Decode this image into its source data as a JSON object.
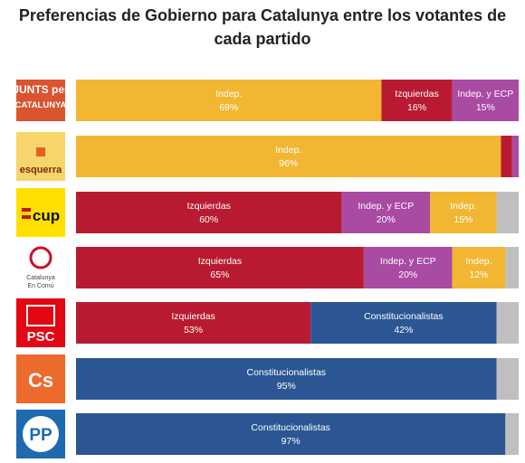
{
  "chart_data": {
    "type": "bar",
    "orientation": "horizontal",
    "stacked": true,
    "normalized": true,
    "title_lines": [
      "Preferencias de Gobierno para Catalunya entre los votantes de",
      "cada partido"
    ],
    "xlabel": "",
    "ylabel": "",
    "xlim": [
      0,
      100
    ],
    "grid": false,
    "legend": "none",
    "categories": [
      "Junts per Catalunya",
      "Esquerra",
      "CUP",
      "Catalunya En Comú",
      "PSC",
      "Cs",
      "PP"
    ],
    "logo_texts": [
      "JUNTS PER CATALUNYA",
      "esquerra",
      "cup",
      "Catalunya En Comú",
      "PSC",
      "Cs",
      "PP"
    ],
    "colors": {
      "Indep.": "#f2b632",
      "Izquierdas": "#b81b31",
      "Indep. y ECP": "#a94aa3",
      "Constitucionalistas": "#2b5693",
      "other": "#bfbfbf"
    },
    "rows": [
      {
        "segments": [
          {
            "label": "Indep.",
            "value": 69,
            "text": "69%"
          },
          {
            "label": "Izquierdas",
            "value": 16,
            "text": "16%"
          },
          {
            "label": "Indep. y ECP",
            "value": 15,
            "text": "15%"
          }
        ]
      },
      {
        "segments": [
          {
            "label": "Indep.",
            "value": 96,
            "text": "96%"
          },
          {
            "label": "",
            "series": "Izquierdas",
            "value": 2.5,
            "text": ""
          },
          {
            "label": "",
            "series": "Indep. y ECP",
            "value": 1.5,
            "text": ""
          }
        ]
      },
      {
        "segments": [
          {
            "label": "Izquierdas",
            "value": 60,
            "text": "60%"
          },
          {
            "label": "Indep. y ECP",
            "value": 20,
            "text": "20%"
          },
          {
            "label": "Indep.",
            "value": 15,
            "text": "15%"
          },
          {
            "label": "",
            "series": "other",
            "value": 5,
            "text": ""
          }
        ]
      },
      {
        "segments": [
          {
            "label": "Izquierdas",
            "value": 65,
            "text": "65%"
          },
          {
            "label": "Indep. y ECP",
            "value": 20,
            "text": "20%"
          },
          {
            "label": "Indep.",
            "value": 12,
            "text": "12%"
          },
          {
            "label": "",
            "series": "other",
            "value": 3,
            "text": ""
          }
        ]
      },
      {
        "segments": [
          {
            "label": "Izquierdas",
            "value": 53,
            "text": "53%"
          },
          {
            "label": "Constitucionalistas",
            "value": 42,
            "text": "42%"
          },
          {
            "label": "",
            "series": "other",
            "value": 5,
            "text": ""
          }
        ]
      },
      {
        "segments": [
          {
            "label": "Constitucionalistas",
            "value": 95,
            "text": "95%"
          },
          {
            "label": "",
            "series": "other",
            "value": 5,
            "text": ""
          }
        ]
      },
      {
        "segments": [
          {
            "label": "Constitucionalistas",
            "value": 97,
            "text": "97%"
          },
          {
            "label": "",
            "series": "other",
            "value": 3,
            "text": ""
          }
        ]
      }
    ]
  }
}
